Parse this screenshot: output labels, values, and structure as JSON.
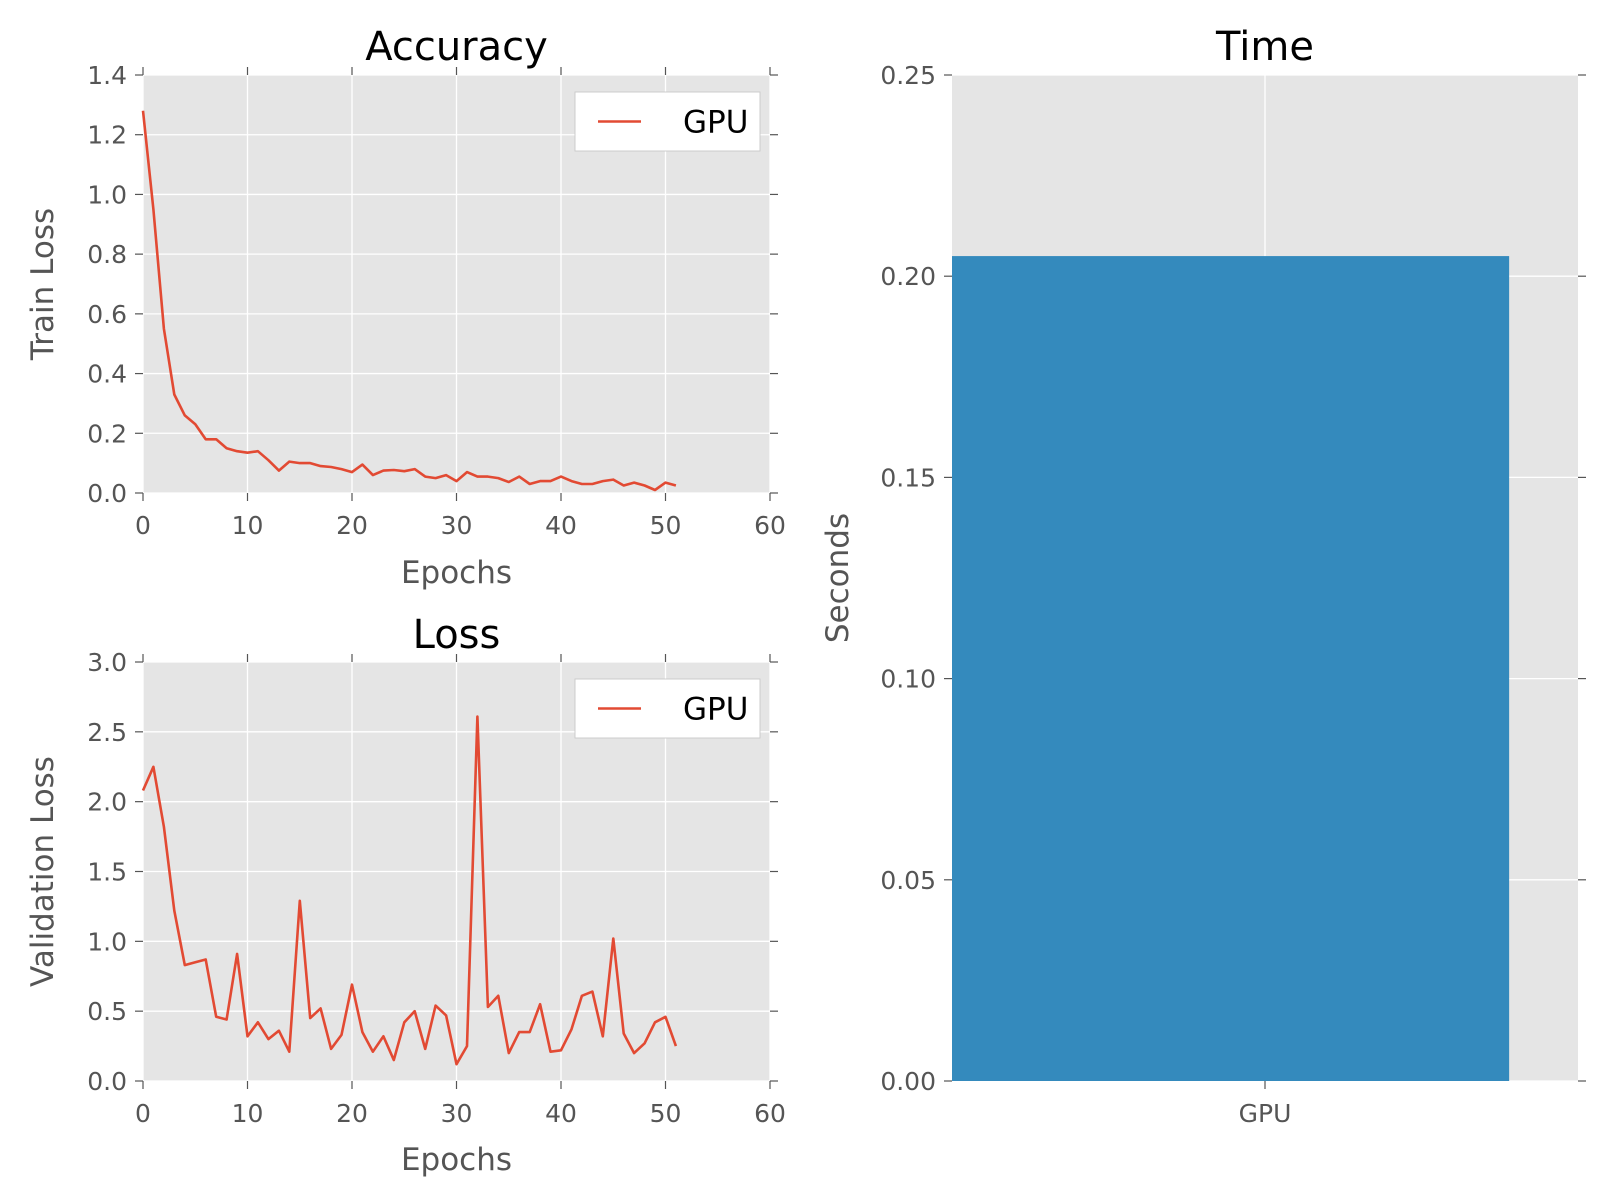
{
  "colors": {
    "panel_bg": "#e5e5e5",
    "grid": "#ffffff",
    "line": "#e24a33",
    "bar": "#348abd",
    "text": "#555555",
    "title": "#000000"
  },
  "chart_data": [
    {
      "id": "accuracy",
      "type": "line",
      "title": "Accuracy",
      "xlabel": "Epochs",
      "ylabel": "Train Loss",
      "xlim": [
        0,
        60
      ],
      "ylim": [
        0,
        1.4
      ],
      "xticks": [
        0,
        10,
        20,
        30,
        40,
        50,
        60
      ],
      "yticks": [
        0.0,
        0.2,
        0.4,
        0.6,
        0.8,
        1.0,
        1.2,
        1.4
      ],
      "grid": true,
      "legend": "top-right",
      "series": [
        {
          "name": "GPU",
          "x": [
            0,
            1,
            2,
            3,
            4,
            5,
            6,
            7,
            8,
            9,
            10,
            11,
            12,
            13,
            14,
            15,
            16,
            17,
            18,
            19,
            20,
            21,
            22,
            23,
            24,
            25,
            26,
            27,
            28,
            29,
            30,
            31,
            32,
            33,
            34,
            35,
            36,
            37,
            38,
            39,
            40,
            41,
            42,
            43,
            44,
            45,
            46,
            47,
            48,
            49,
            50,
            51
          ],
          "y": [
            1.28,
            0.95,
            0.55,
            0.33,
            0.26,
            0.23,
            0.18,
            0.18,
            0.15,
            0.14,
            0.135,
            0.14,
            0.11,
            0.075,
            0.105,
            0.1,
            0.1,
            0.09,
            0.087,
            0.08,
            0.07,
            0.095,
            0.06,
            0.075,
            0.077,
            0.073,
            0.08,
            0.055,
            0.05,
            0.06,
            0.04,
            0.07,
            0.055,
            0.055,
            0.05,
            0.037,
            0.055,
            0.03,
            0.04,
            0.04,
            0.055,
            0.04,
            0.03,
            0.03,
            0.04,
            0.045,
            0.025,
            0.035,
            0.025,
            0.01,
            0.035,
            0.025
          ]
        }
      ]
    },
    {
      "id": "loss",
      "type": "line",
      "title": "Loss",
      "xlabel": "Epochs",
      "ylabel": "Validation Loss",
      "xlim": [
        0,
        60
      ],
      "ylim": [
        0,
        3.0
      ],
      "xticks": [
        0,
        10,
        20,
        30,
        40,
        50,
        60
      ],
      "yticks": [
        0.0,
        0.5,
        1.0,
        1.5,
        2.0,
        2.5,
        3.0
      ],
      "grid": true,
      "legend": "top-right",
      "series": [
        {
          "name": "GPU",
          "x": [
            0,
            1,
            2,
            3,
            4,
            5,
            6,
            7,
            8,
            9,
            10,
            11,
            12,
            13,
            14,
            15,
            16,
            17,
            18,
            19,
            20,
            21,
            22,
            23,
            24,
            25,
            26,
            27,
            28,
            29,
            30,
            31,
            32,
            33,
            34,
            35,
            36,
            37,
            38,
            39,
            40,
            41,
            42,
            43,
            44,
            45,
            46,
            47,
            48,
            49,
            50,
            51
          ],
          "y": [
            2.08,
            2.25,
            1.82,
            1.22,
            0.83,
            0.85,
            0.87,
            0.46,
            0.44,
            0.91,
            0.32,
            0.42,
            0.3,
            0.36,
            0.21,
            1.29,
            0.45,
            0.52,
            0.23,
            0.33,
            0.69,
            0.35,
            0.21,
            0.32,
            0.15,
            0.42,
            0.5,
            0.23,
            0.54,
            0.47,
            0.12,
            0.25,
            2.61,
            0.53,
            0.61,
            0.2,
            0.35,
            0.35,
            0.55,
            0.21,
            0.22,
            0.37,
            0.61,
            0.64,
            0.32,
            1.02,
            0.34,
            0.2,
            0.27,
            0.42,
            0.46,
            0.25
          ]
        }
      ]
    },
    {
      "id": "time",
      "type": "bar",
      "title": "Time",
      "xlabel": "",
      "ylabel": "Seconds",
      "ylim": [
        0,
        0.25
      ],
      "yticks": [
        0.0,
        0.05,
        0.1,
        0.15,
        0.2,
        0.25
      ],
      "grid": true,
      "categories": [
        "GPU"
      ],
      "values": [
        0.205
      ]
    }
  ]
}
